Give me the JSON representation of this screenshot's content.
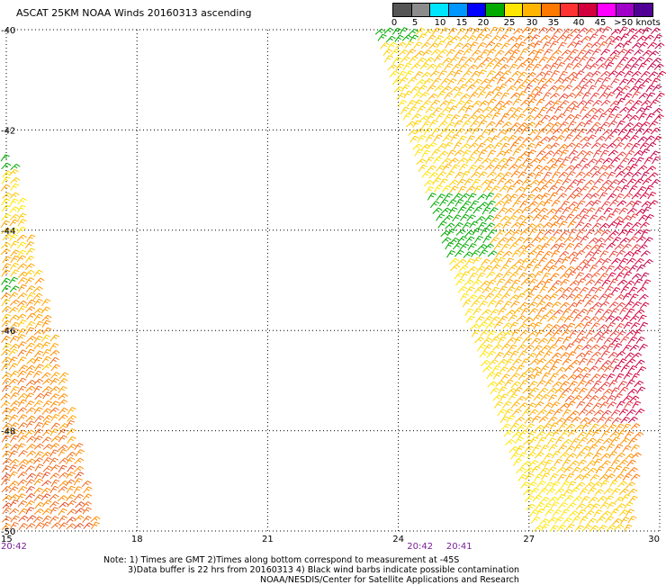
{
  "title": "ASCAT 25KM NOAA Winds 20160313 ascending",
  "colorbar": {
    "labels": [
      "0",
      "5",
      "10",
      "15",
      "20",
      "25",
      "30",
      "35",
      "40",
      "45",
      ">50 knots"
    ],
    "colors": [
      "#555555",
      "#8c8c8c",
      "#00e6ff",
      "#0096ff",
      "#0000ff",
      "#00aa00",
      "#ffe600",
      "#ffb400",
      "#ff7800",
      "#ff3232",
      "#d2003c",
      "#ff00ff",
      "#a000c8",
      "#500096"
    ]
  },
  "map": {
    "lat_range": [
      -50,
      -40
    ],
    "lon_range": [
      15,
      30
    ],
    "lat_ticks": [
      "-40",
      "-42",
      "-44",
      "-46",
      "-48",
      "-50"
    ],
    "lon_ticks": [
      "15",
      "18",
      "21",
      "24",
      "27",
      "30"
    ],
    "time_labels": [
      {
        "text": "20:42",
        "lon": 15
      },
      {
        "text": "20:42",
        "lon": 24.2
      },
      {
        "text": "20:41",
        "lon": 25.1
      }
    ]
  },
  "notes": {
    "line1": "Note: 1) Times are GMT 2)Times along bottom correspond to measurement at -45S",
    "line2": "3)Data buffer is 22 hrs from 20160313 4) Black wind barbs indicate possible contamination",
    "line3": "NOAA/NESDIS/Center for Satellite Applications and Research"
  }
}
